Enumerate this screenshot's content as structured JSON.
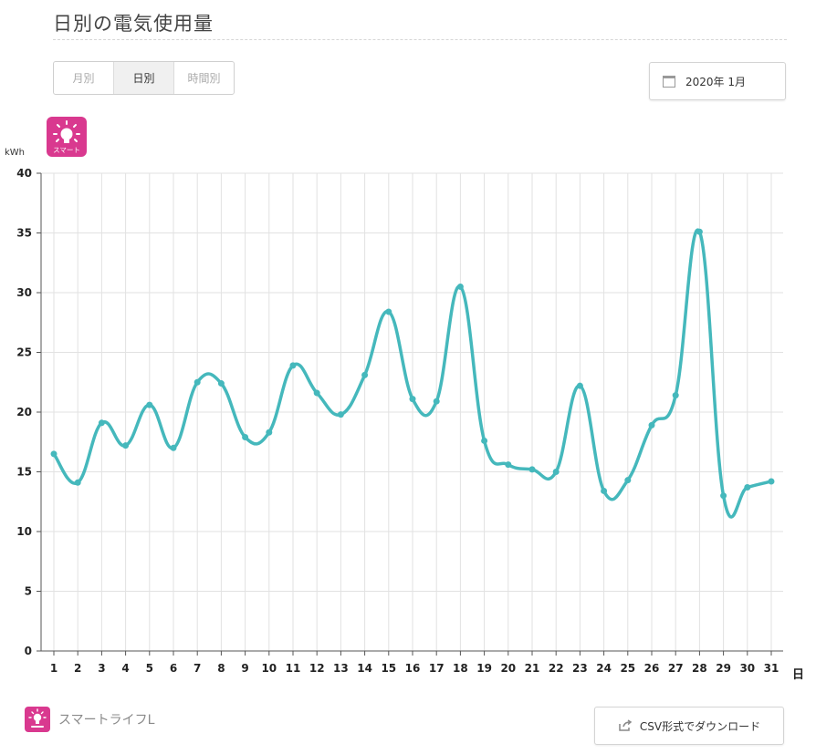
{
  "page": {
    "title": "日別の電気使用量"
  },
  "period_tabs": [
    {
      "label": "月別",
      "active": false
    },
    {
      "label": "日別",
      "active": true
    },
    {
      "label": "時間別",
      "active": false
    }
  ],
  "date_picker": {
    "label": "2020年  1月",
    "icon": "calendar-icon"
  },
  "badge": {
    "icon": "lightbulb-icon",
    "label": "スマート",
    "color": "#d9398f"
  },
  "footer": {
    "brand_label": "スマートライフL",
    "download_label": "CSV形式でダウンロード",
    "download_icon": "share-icon"
  },
  "chart_data": {
    "type": "line",
    "ylabel": "kWh",
    "xlabel": "日",
    "ylim": [
      0,
      40
    ],
    "yticks": [
      0,
      5,
      10,
      15,
      20,
      25,
      30,
      35,
      40
    ],
    "grid": true,
    "line_color": "#45b8bc",
    "x": [
      1,
      2,
      3,
      4,
      5,
      6,
      7,
      8,
      9,
      10,
      11,
      12,
      13,
      14,
      15,
      16,
      17,
      18,
      19,
      20,
      21,
      22,
      23,
      24,
      25,
      26,
      27,
      28,
      29,
      30,
      31
    ],
    "series": [
      {
        "values": [
          16.5,
          14.1,
          19.1,
          17.2,
          20.6,
          17.0,
          22.5,
          22.4,
          17.9,
          18.3,
          23.9,
          21.6,
          19.8,
          23.1,
          28.4,
          21.1,
          20.9,
          30.5,
          17.6,
          15.6,
          15.2,
          15.0,
          22.2,
          13.4,
          14.3,
          18.9,
          21.4,
          35.1,
          13.0,
          13.7,
          14.2
        ]
      }
    ]
  }
}
